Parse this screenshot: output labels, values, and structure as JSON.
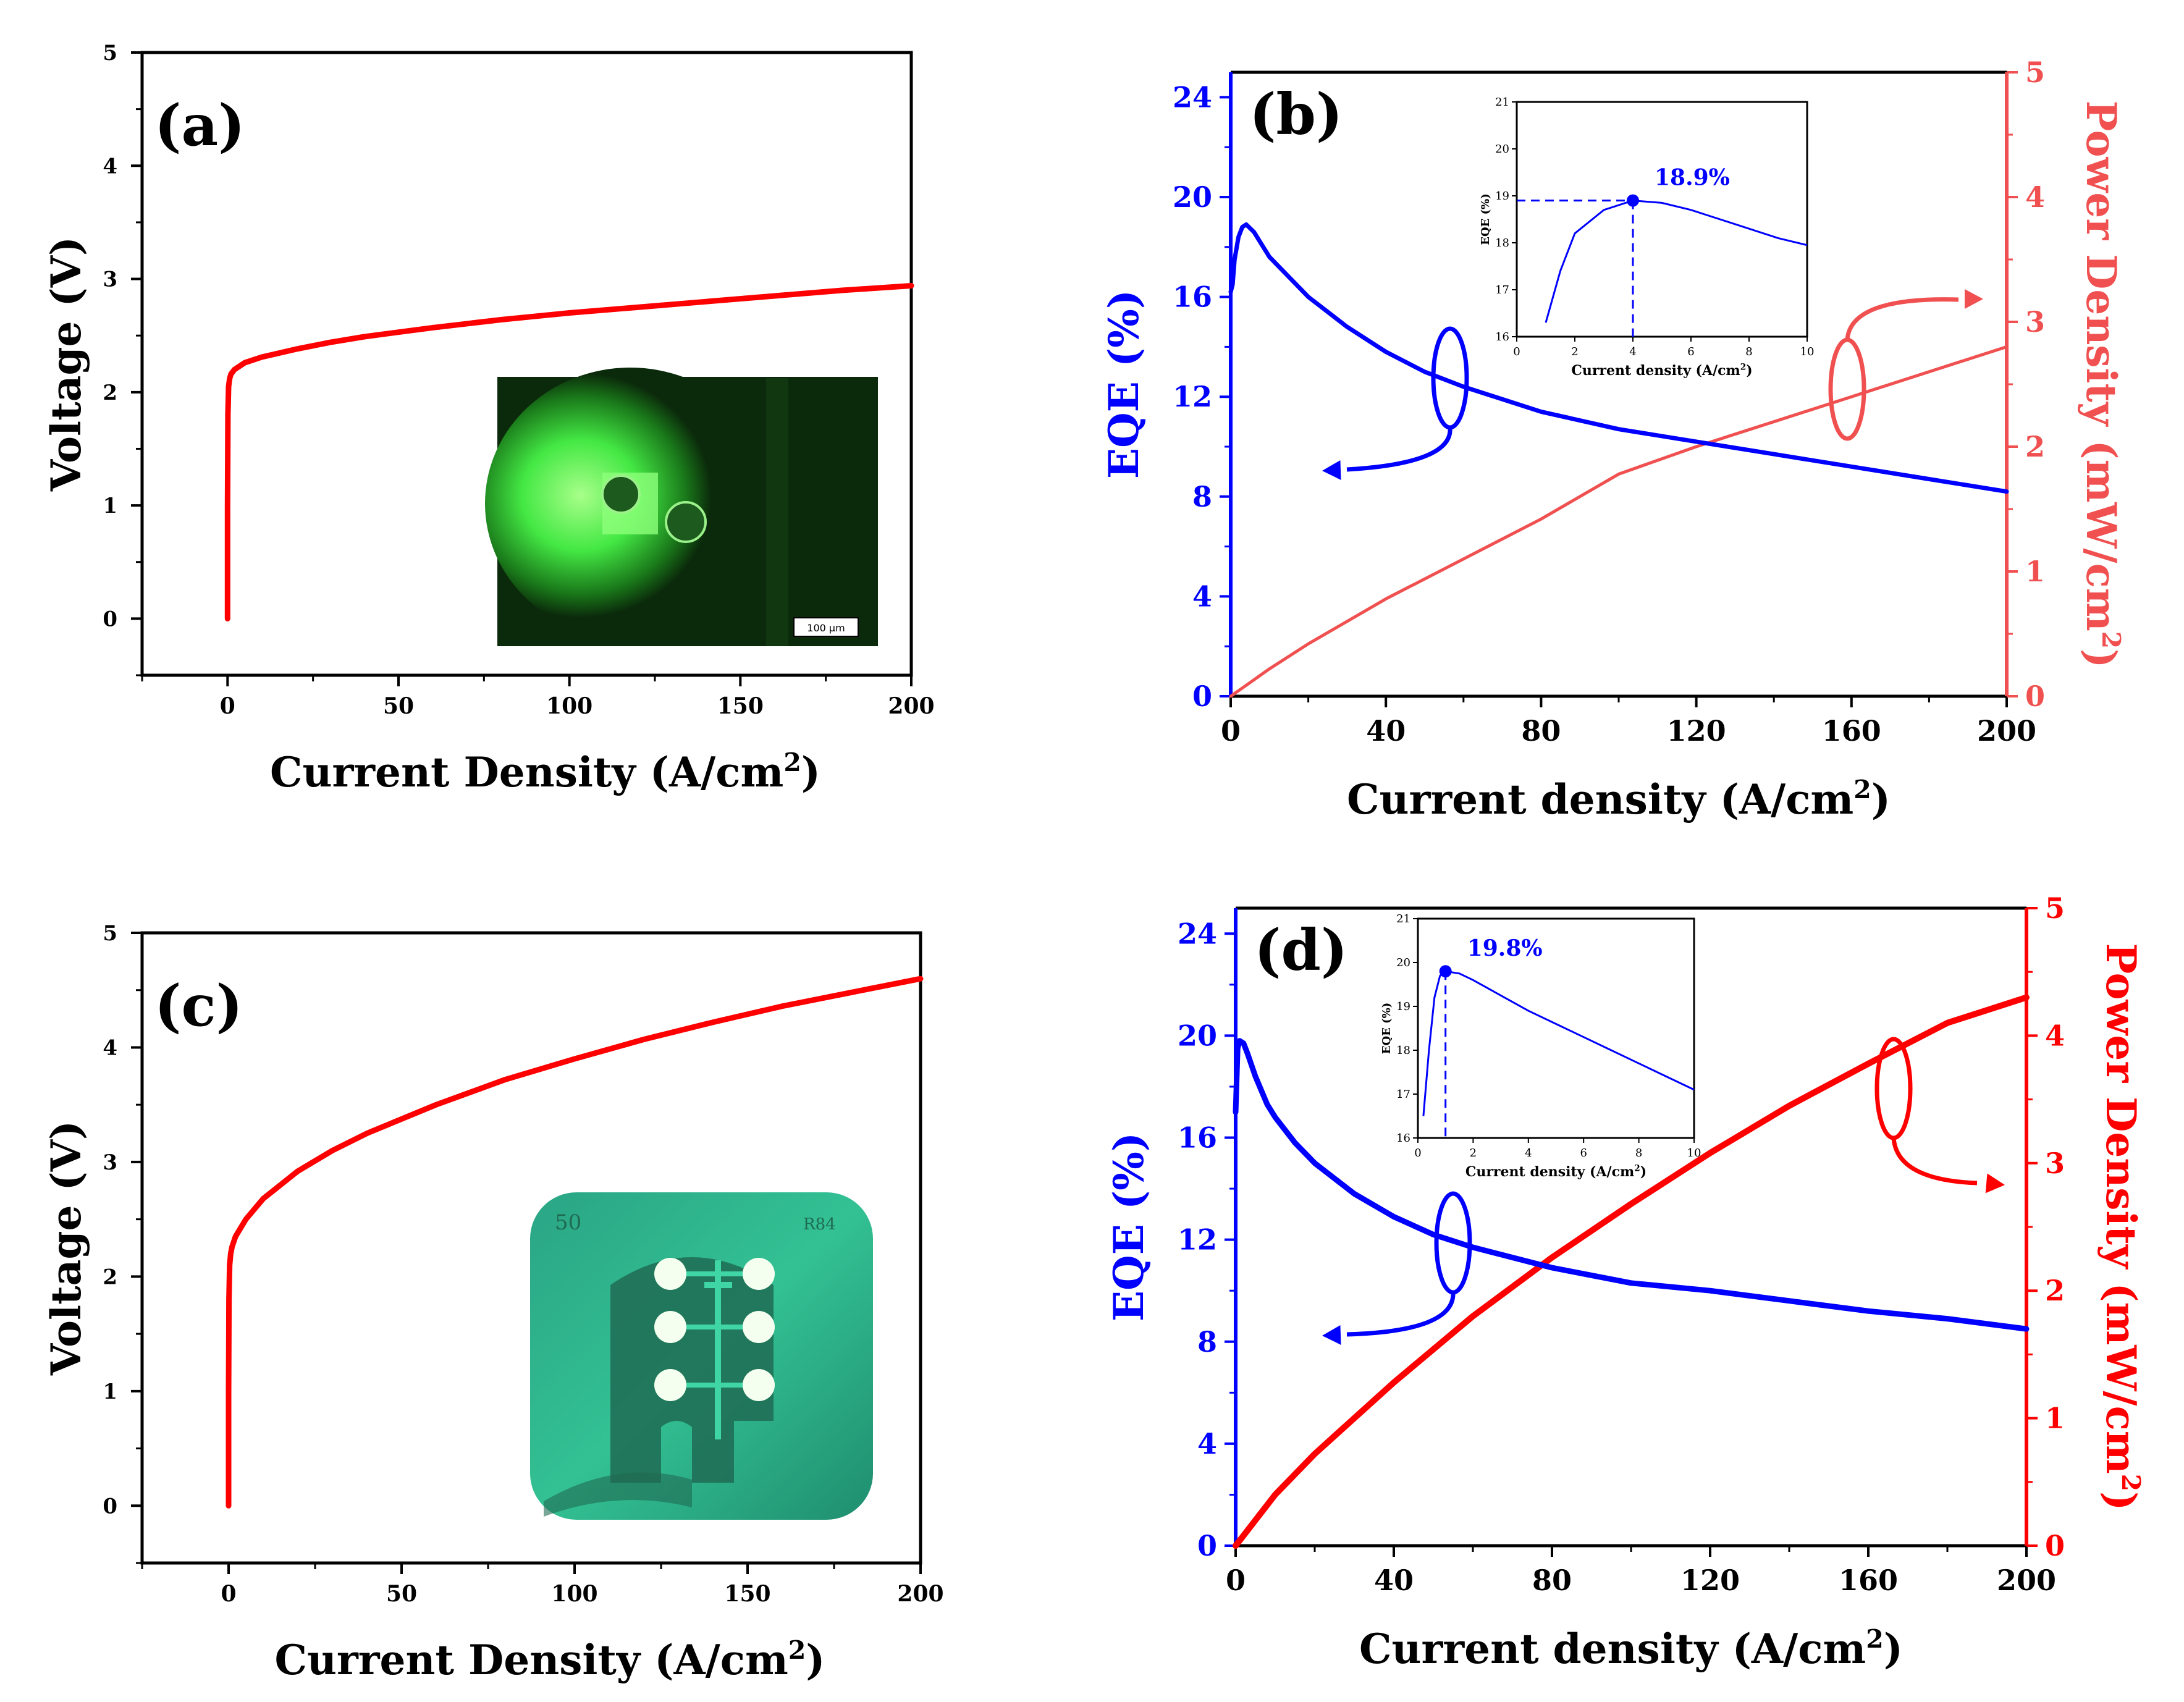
{
  "charts": {
    "a": {
      "panel_label": "(a)",
      "xlabel": "Current Density (A/cm",
      "xlabel_sup": "2",
      "xlabel_tail": ")",
      "ylabel": "Voltage (V)",
      "x_ticks": [
        "0",
        "50",
        "100",
        "150",
        "200"
      ],
      "y_ticks": [
        "0",
        "1",
        "2",
        "3",
        "4",
        "5"
      ],
      "inset_scale_text": "100 μm"
    },
    "b": {
      "panel_label": "(b)",
      "xlabel": "Current density (A/cm",
      "xlabel_sup": "2",
      "xlabel_tail": ")",
      "ylabel_left": "EQE (%)",
      "ylabel_right": "Power Density (mW/cm",
      "ylabel_right_sup": "2",
      "ylabel_right_tail": ")",
      "x_ticks": [
        "0",
        "40",
        "80",
        "120",
        "160",
        "200"
      ],
      "y_left_ticks": [
        "0",
        "4",
        "8",
        "12",
        "16",
        "20",
        "24"
      ],
      "y_right_ticks": [
        "0",
        "1",
        "2",
        "3",
        "4",
        "5"
      ],
      "inset": {
        "annotation": "18.9%",
        "xlabel": "Current density (A/cm",
        "xlabel_sup": "2",
        "xlabel_tail": ")",
        "ylabel": "EQE (%)",
        "x_ticks": [
          "0",
          "2",
          "4",
          "6",
          "8",
          "10"
        ],
        "y_ticks": [
          "16",
          "17",
          "18",
          "19",
          "20",
          "21"
        ]
      }
    },
    "c": {
      "panel_label": "(c)",
      "xlabel": "Current Density (A/cm",
      "xlabel_sup": "2",
      "xlabel_tail": ")",
      "ylabel": "Voltage (V)",
      "x_ticks": [
        "0",
        "50",
        "100",
        "150",
        "200"
      ],
      "y_ticks": [
        "0",
        "1",
        "2",
        "3",
        "4",
        "5"
      ],
      "inset_chip_left_text": "50",
      "inset_chip_right_text": "R84"
    },
    "d": {
      "panel_label": "(d)",
      "xlabel": "Current density  (A/cm",
      "xlabel_sup": "2",
      "xlabel_tail": ")",
      "ylabel_left": "EQE (%)",
      "ylabel_right": "Power Density (mW/cm",
      "ylabel_right_sup": "2",
      "ylabel_right_tail": ")",
      "x_ticks": [
        "0",
        "40",
        "80",
        "120",
        "160",
        "200"
      ],
      "y_left_ticks": [
        "0",
        "4",
        "8",
        "12",
        "16",
        "20",
        "24"
      ],
      "y_right_ticks": [
        "0",
        "1",
        "2",
        "3",
        "4",
        "5"
      ],
      "inset": {
        "annotation": "19.8%",
        "xlabel": "Current density (A/cm",
        "xlabel_sup": "2",
        "xlabel_tail": ")",
        "ylabel": "EQE (%)",
        "x_ticks": [
          "0",
          "2",
          "4",
          "6",
          "8",
          "10"
        ],
        "y_ticks": [
          "16",
          "17",
          "18",
          "19",
          "20",
          "21"
        ]
      }
    }
  },
  "colors": {
    "red": "#ff0000",
    "light_red": "#f05050",
    "blue": "#0000ff",
    "axis": "#000000",
    "inset_green_bg": "#0b2a0b",
    "inset_green_glow": "#44e844",
    "inset_teal": "#2fb38a"
  },
  "chart_data": [
    {
      "id": "a",
      "type": "line",
      "title": "",
      "xlabel": "Current Density (A/cm2)",
      "ylabel": "Voltage (V)",
      "xlim": [
        -25,
        200
      ],
      "ylim": [
        -0.5,
        5
      ],
      "series": [
        {
          "color": "#ff0000",
          "x": [
            0,
            0,
            0.1,
            0.3,
            0.6,
            1,
            2,
            5,
            10,
            20,
            30,
            40,
            60,
            80,
            100,
            120,
            140,
            160,
            180,
            200
          ],
          "y": [
            0,
            1.0,
            1.8,
            2.05,
            2.12,
            2.16,
            2.2,
            2.26,
            2.31,
            2.38,
            2.44,
            2.49,
            2.57,
            2.64,
            2.7,
            2.75,
            2.8,
            2.85,
            2.9,
            2.94
          ]
        }
      ]
    },
    {
      "id": "b",
      "type": "line",
      "title": "",
      "xlabel": "Current density (A/cm2)",
      "ylabel": "EQE (%)",
      "ylabel_right": "Power Density (mW/cm2)",
      "xlim": [
        0,
        200
      ],
      "ylim": [
        0,
        25
      ],
      "ylim_right": [
        0,
        5
      ],
      "series": [
        {
          "axis": "left",
          "color": "#0000ff",
          "x": [
            0,
            0.5,
            1,
            2,
            3,
            4,
            6,
            8,
            10,
            15,
            20,
            30,
            40,
            50,
            60,
            80,
            100,
            120,
            140,
            160,
            180,
            200
          ],
          "y": [
            16.2,
            16.5,
            17.5,
            18.4,
            18.8,
            18.9,
            18.6,
            18.1,
            17.6,
            16.8,
            16.0,
            14.8,
            13.8,
            13.0,
            12.4,
            11.4,
            10.7,
            10.2,
            9.7,
            9.2,
            8.7,
            8.2
          ]
        },
        {
          "axis": "right",
          "color": "#f05050",
          "x": [
            0,
            10,
            20,
            40,
            60,
            80,
            100,
            120,
            140,
            160,
            180,
            200
          ],
          "y": [
            0,
            0.22,
            0.42,
            0.78,
            1.1,
            1.42,
            1.78,
            2.0,
            2.2,
            2.4,
            2.6,
            2.8
          ]
        }
      ],
      "inset": {
        "type": "line",
        "xlim": [
          0,
          10
        ],
        "ylim": [
          16,
          21
        ],
        "x": [
          1,
          1.5,
          2,
          3,
          4,
          5,
          6,
          7,
          8,
          9,
          10
        ],
        "y": [
          16.3,
          17.4,
          18.2,
          18.7,
          18.9,
          18.85,
          18.7,
          18.5,
          18.3,
          18.1,
          17.95
        ],
        "peak": [
          4,
          18.9
        ]
      }
    },
    {
      "id": "c",
      "type": "line",
      "title": "",
      "xlabel": "Current Density (A/cm2)",
      "ylabel": "Voltage (V)",
      "xlim": [
        -25,
        200
      ],
      "ylim": [
        -0.5,
        5
      ],
      "series": [
        {
          "color": "#ff0000",
          "x": [
            0,
            0,
            0.1,
            0.3,
            0.6,
            1,
            2,
            5,
            10,
            20,
            30,
            40,
            60,
            80,
            100,
            120,
            140,
            160,
            180,
            200
          ],
          "y": [
            0,
            1.0,
            1.8,
            2.1,
            2.2,
            2.26,
            2.35,
            2.5,
            2.68,
            2.92,
            3.1,
            3.25,
            3.5,
            3.72,
            3.9,
            4.07,
            4.22,
            4.36,
            4.48,
            4.6
          ]
        }
      ]
    },
    {
      "id": "d",
      "type": "line",
      "title": "",
      "xlabel": "Current density  (A/cm2)",
      "ylabel": "EQE (%)",
      "ylabel_right": "Power Density (mW/cm2)",
      "xlim": [
        0,
        200
      ],
      "ylim": [
        0,
        25
      ],
      "ylim_right": [
        0,
        5
      ],
      "series": [
        {
          "axis": "left",
          "color": "#0000ff",
          "x": [
            0,
            0.5,
            1,
            2,
            3,
            5,
            8,
            10,
            15,
            20,
            30,
            40,
            50,
            60,
            80,
            100,
            120,
            140,
            160,
            180,
            200
          ],
          "y": [
            17,
            19.5,
            19.8,
            19.7,
            19.3,
            18.4,
            17.3,
            16.8,
            15.8,
            15.0,
            13.8,
            12.9,
            12.2,
            11.7,
            10.9,
            10.3,
            10.0,
            9.6,
            9.2,
            8.9,
            8.5
          ]
        },
        {
          "axis": "right",
          "color": "#ff0000",
          "x": [
            0,
            10,
            20,
            40,
            60,
            80,
            100,
            120,
            140,
            160,
            180,
            200
          ],
          "y": [
            0,
            0.4,
            0.72,
            1.28,
            1.8,
            2.26,
            2.68,
            3.08,
            3.45,
            3.78,
            4.1,
            4.3
          ]
        }
      ],
      "inset": {
        "type": "line",
        "xlim": [
          0,
          10
        ],
        "ylim": [
          16,
          21
        ],
        "x": [
          0.2,
          0.4,
          0.6,
          0.8,
          1,
          1.5,
          2,
          3,
          4,
          5,
          6,
          7,
          8,
          9,
          10
        ],
        "y": [
          16.5,
          18.0,
          19.2,
          19.7,
          19.8,
          19.75,
          19.6,
          19.25,
          18.9,
          18.6,
          18.3,
          18.0,
          17.7,
          17.4,
          17.1
        ],
        "peak": [
          1,
          19.8
        ]
      }
    }
  ]
}
